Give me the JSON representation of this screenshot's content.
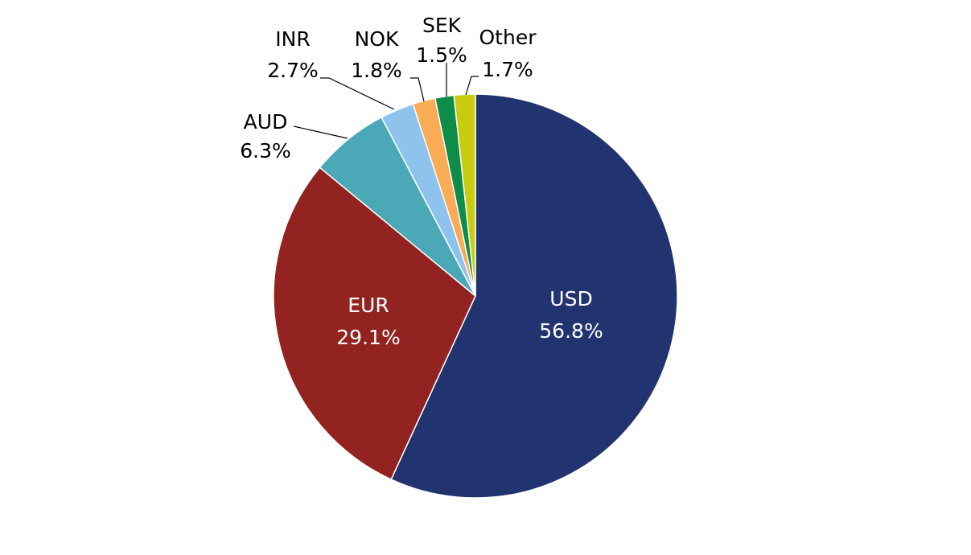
{
  "chart_data": {
    "type": "pie",
    "title": "",
    "slices": [
      {
        "label": "USD",
        "value": 56.8,
        "value_text": "56.8%",
        "color": "#22346F",
        "label_color": "#ffffff"
      },
      {
        "label": "EUR",
        "value": 29.1,
        "value_text": "29.1%",
        "color": "#922320",
        "label_color": "#ffffff"
      },
      {
        "label": "AUD",
        "value": 6.3,
        "value_text": "6.3%",
        "color": "#4BA8B6",
        "label_color": "#000000"
      },
      {
        "label": "INR",
        "value": 2.7,
        "value_text": "2.7%",
        "color": "#8DC3EC",
        "label_color": "#000000"
      },
      {
        "label": "NOK",
        "value": 1.8,
        "value_text": "1.8%",
        "color": "#F9AC55",
        "label_color": "#000000"
      },
      {
        "label": "SEK",
        "value": 1.5,
        "value_text": "1.5%",
        "color": "#0E8C4A",
        "label_color": "#000000"
      },
      {
        "label": "Other",
        "value": 1.7,
        "value_text": "1.7%",
        "color": "#C8CC0E",
        "label_color": "#000000"
      }
    ]
  }
}
